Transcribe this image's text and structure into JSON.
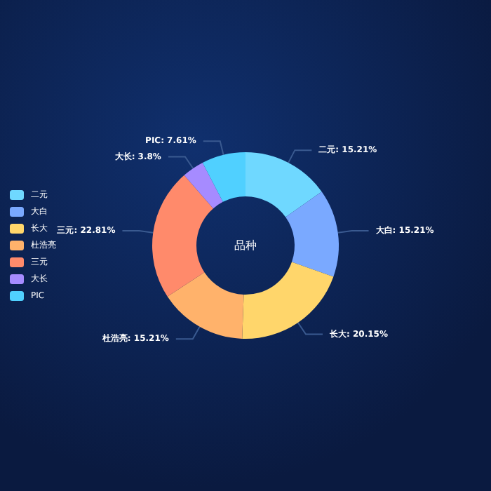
{
  "chart_data": {
    "type": "donut",
    "title": "品种",
    "categories": [
      "二元",
      "大白",
      "长大",
      "杜浩亮",
      "三元",
      "大长",
      "PIC"
    ],
    "values": [
      15.21,
      15.21,
      20.15,
      15.21,
      22.81,
      3.8,
      7.61
    ],
    "colors": [
      "#6fd8ff",
      "#7aa9ff",
      "#ffd66b",
      "#ffb26b",
      "#ff8a6b",
      "#a68bff",
      "#50d0ff"
    ],
    "value_labels": [
      "二元: 15.21%",
      "大白: 15.21%",
      "长大: 20.15%",
      "杜浩亮: 15.21%",
      "三元: 22.81%",
      "大长: 3.8%",
      "PIC: 7.61%"
    ],
    "legend": "left"
  }
}
